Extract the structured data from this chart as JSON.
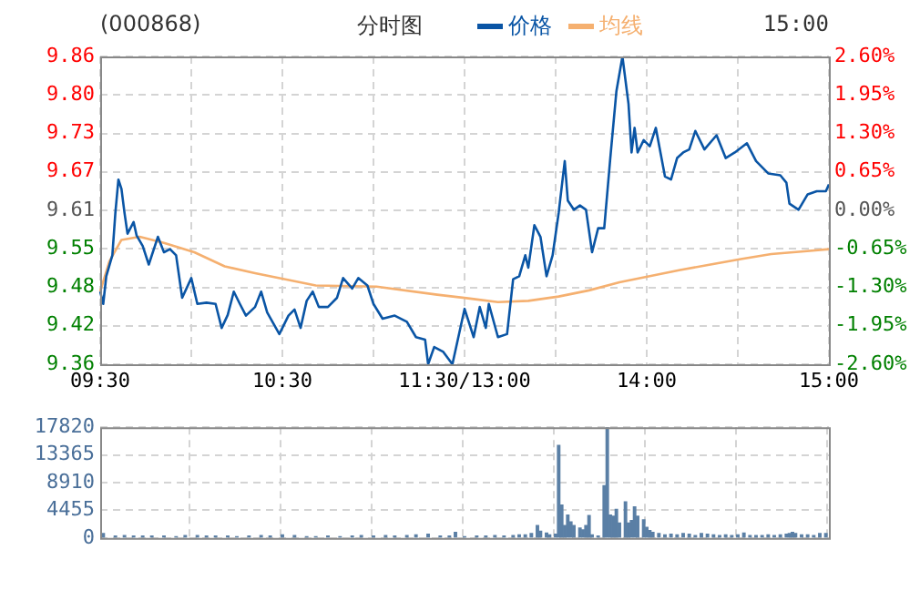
{
  "chart_data": [
    {
      "type": "line",
      "title": "(000868)",
      "subtitle": "分时图",
      "annotations": [
        "15:00"
      ],
      "legend": "top",
      "categories": [
        "09:30",
        null,
        null,
        null,
        null,
        null,
        null,
        null,
        null,
        null,
        null,
        null,
        null,
        null,
        null,
        null,
        null,
        null,
        null,
        null,
        null,
        null,
        null,
        null,
        null,
        null,
        null,
        null,
        null,
        null,
        null,
        null,
        null,
        null,
        null,
        null,
        null,
        null,
        null,
        null,
        null,
        null,
        null,
        null,
        null,
        null,
        null,
        null,
        null,
        null,
        null,
        null,
        null,
        null,
        null,
        null,
        null,
        null,
        null,
        null,
        "10:30",
        null,
        null,
        null,
        null,
        null,
        null,
        null,
        null,
        null,
        null,
        null,
        null,
        null,
        null,
        null,
        null,
        null,
        null,
        null,
        null,
        null,
        null,
        null,
        null,
        null,
        null,
        null,
        null,
        null,
        null,
        null,
        null,
        null,
        null,
        null,
        null,
        null,
        null,
        null,
        null,
        null,
        null,
        null,
        null,
        null,
        null,
        null,
        null,
        null,
        null,
        null,
        null,
        null,
        null,
        null,
        null,
        null,
        null,
        null,
        "11:30/13:00",
        null,
        null,
        null,
        null,
        null,
        null,
        null,
        null,
        null,
        null,
        null,
        null,
        null,
        null,
        null,
        null,
        null,
        null,
        null,
        null,
        null,
        null,
        null,
        null,
        null,
        null,
        null,
        null,
        null,
        null,
        null,
        null,
        null,
        null,
        null,
        null,
        null,
        null,
        null,
        null,
        null,
        null,
        null,
        null,
        null,
        null,
        null,
        null,
        null,
        null,
        null,
        null,
        null,
        null,
        null,
        null,
        null,
        null,
        null,
        "14:00",
        null,
        null,
        null,
        null,
        null,
        null,
        null,
        null,
        null,
        null,
        null,
        null,
        null,
        null,
        null,
        null,
        null,
        null,
        null,
        null,
        null,
        null,
        null,
        null,
        null,
        null,
        null,
        null,
        null,
        null,
        null,
        null,
        null,
        null,
        null,
        null,
        null,
        null,
        null,
        null,
        null,
        null,
        null,
        null,
        null,
        null,
        null,
        null,
        null,
        null,
        null,
        null,
        null,
        null,
        null,
        null,
        null,
        null,
        null,
        "15:00"
      ],
      "ylim": [
        9.36,
        9.86
      ],
      "yticks": [
        9.36,
        {
          "value": 9.4225,
          "label": "9.42"
        },
        {
          "value": 9.485,
          "label": "9.48"
        },
        {
          "value": 9.5475,
          "label": "9.55"
        },
        9.61,
        {
          "value": 9.6725,
          "label": "9.67"
        },
        {
          "value": 9.735,
          "label": "9.73"
        },
        {
          "value": 9.7975,
          "label": "9.80"
        },
        9.86
      ],
      "y2lim": [
        -2.6,
        2.6
      ],
      "y2ticks": [
        {
          "value": -2.6,
          "label": "-2.60%"
        },
        {
          "value": -1.95,
          "label": "-1.95%"
        },
        {
          "value": -1.3,
          "label": "-1.30%"
        },
        {
          "value": -0.65,
          "label": "-0.65%"
        },
        {
          "value": 0,
          "label": "0.00%"
        },
        {
          "value": 0.65,
          "label": "0.65%"
        },
        {
          "value": 1.3,
          "label": "1.30%"
        },
        {
          "value": 1.95,
          "label": "1.95%"
        },
        {
          "value": 2.6,
          "label": "2.60%"
        }
      ],
      "grid": true,
      "marker": "none",
      "series": [
        {
          "name": "价格",
          "color": "#0a55a5",
          "values": [
            9.478,
            9.458,
            9.503,
            null,
            9.537,
            9.606,
            9.66,
            9.645,
            9.606,
            9.572,
            null,
            9.591,
            9.569,
            null,
            9.552,
            null,
            9.522,
            null,
            null,
            9.567,
            null,
            9.542,
            null,
            9.547,
            null,
            9.537,
            null,
            9.468,
            null,
            null,
            9.5,
            null,
            9.458,
            null,
            null,
            9.46,
            null,
            null,
            9.458,
            null,
            9.419,
            null,
            9.44,
            null,
            9.478,
            null,
            9.458,
            null,
            9.439,
            null,
            null,
            9.453,
            null,
            9.478,
            null,
            9.444,
            null,
            null,
            null,
            9.409,
            null,
            null,
            9.439,
            null,
            9.449,
            null,
            9.419,
            null,
            9.463,
            null,
            9.478,
            null,
            9.453,
            null,
            null,
            9.453,
            null,
            null,
            9.468,
            null,
            9.5,
            null,
            null,
            9.483,
            null,
            9.5,
            null,
            null,
            9.488,
            null,
            9.458,
            null,
            null,
            9.434,
            null,
            null,
            null,
            9.439,
            null,
            null,
            null,
            9.429,
            null,
            null,
            9.404,
            null,
            null,
            9.4,
            9.36,
            null,
            9.388,
            null,
            null,
            9.38,
            null,
            null,
            9.36,
            null,
            null,
            null,
            9.45,
            null,
            null,
            9.404,
            null,
            9.453,
            null,
            9.419,
            9.458,
            null,
            null,
            9.404,
            null,
            null,
            9.409,
            null,
            9.498,
            null,
            9.503,
            null,
            9.537,
            9.517,
            null,
            9.586,
            null,
            9.567,
            null,
            9.503,
            null,
            9.537,
            null,
            9.606,
            null,
            9.69,
            9.626,
            null,
            9.611,
            null,
            9.618,
            null,
            9.611,
            null,
            9.542,
            null,
            9.581,
            null,
            9.581,
            null,
            9.695,
            null,
            9.803,
            null,
            9.86,
            null,
            9.783,
            9.704,
            9.744,
            9.704,
            null,
            9.724,
            null,
            9.714,
            null,
            9.744,
            null,
            null,
            9.665,
            null,
            9.66,
            null,
            9.695,
            null,
            9.704,
            null,
            9.709,
            null,
            9.739,
            null,
            null,
            9.709,
            null,
            null,
            null,
            9.732,
            null,
            null,
            9.695,
            null,
            null,
            9.704,
            null,
            null,
            null,
            9.719,
            null,
            null,
            9.69,
            null,
            null,
            null,
            9.67,
            null,
            null,
            null,
            9.667,
            null,
            9.655,
            9.621,
            null,
            null,
            9.611,
            null,
            null,
            9.636,
            null,
            null,
            9.641,
            null,
            null,
            9.641,
            9.652
          ]
        },
        {
          "name": "均线",
          "color": "#f5b070",
          "values": [
            9.478,
            null,
            null,
            9.527,
            null,
            null,
            null,
            9.562,
            null,
            null,
            null,
            null,
            null,
            9.567,
            null,
            null,
            null,
            null,
            null,
            null,
            null,
            9.557,
            null,
            null,
            null,
            null,
            null,
            null,
            null,
            null,
            null,
            9.542,
            null,
            null,
            null,
            null,
            null,
            null,
            null,
            null,
            null,
            9.519,
            null,
            null,
            null,
            null,
            null,
            null,
            null,
            null,
            null,
            9.508,
            null,
            null,
            null,
            null,
            null,
            null,
            null,
            null,
            null,
            9.498,
            null,
            null,
            null,
            null,
            null,
            null,
            null,
            null,
            null,
            9.488,
            null,
            null,
            null,
            null,
            null,
            null,
            null,
            null,
            null,
            null,
            null,
            null,
            null,
            null,
            null,
            null,
            null,
            null,
            null,
            9.486,
            null,
            null,
            null,
            null,
            null,
            null,
            null,
            null,
            null,
            null,
            null,
            null,
            null,
            null,
            null,
            null,
            null,
            null,
            null,
            9.473,
            null,
            null,
            null,
            null,
            null,
            null,
            null,
            null,
            null,
            null,
            null,
            9.466,
            null,
            null,
            null,
            null,
            null,
            null,
            null,
            9.461,
            null,
            null,
            null,
            null,
            null,
            null,
            null,
            null,
            null,
            9.463,
            null,
            null,
            null,
            null,
            null,
            null,
            null,
            null,
            null,
            9.47,
            null,
            null,
            null,
            null,
            null,
            null,
            null,
            null,
            null,
            9.48,
            null,
            null,
            null,
            null,
            null,
            null,
            null,
            null,
            null,
            9.493,
            null,
            null,
            null,
            null,
            null,
            null,
            null,
            null,
            null,
            9.503,
            null,
            null,
            null,
            null,
            null,
            null,
            null,
            null,
            null,
            9.513,
            null,
            null,
            null,
            null,
            null,
            null,
            null,
            null,
            null,
            9.522,
            null,
            null,
            null,
            null,
            null,
            null,
            null,
            null,
            null,
            9.531,
            null,
            null,
            null,
            null,
            null,
            null,
            null,
            null,
            null,
            9.539,
            null,
            null,
            null,
            null,
            null,
            null,
            null,
            null,
            null,
            9.543,
            null,
            null,
            null,
            null,
            null,
            null,
            null,
            null,
            9.547
          ]
        }
      ]
    },
    {
      "type": "bar",
      "color": "#5a7fa5",
      "grid": true,
      "tick_labels": "y",
      "categories": [
        null,
        null,
        null,
        null,
        null,
        null,
        null,
        null,
        null,
        null,
        null,
        null,
        null,
        null,
        null,
        null,
        null,
        null,
        null,
        null,
        null,
        null,
        null,
        null,
        null,
        null,
        null,
        null,
        null,
        null,
        null,
        null,
        null,
        null,
        null,
        null,
        null,
        null,
        null,
        null,
        null,
        null,
        null,
        null,
        null,
        null,
        null,
        null,
        null,
        null,
        null,
        null,
        null,
        null,
        null,
        null,
        null,
        null,
        null,
        null,
        null,
        null,
        null,
        null,
        null,
        null,
        null,
        null,
        null,
        null,
        null,
        null,
        null,
        null,
        null,
        null,
        null,
        null,
        null,
        null,
        null,
        null,
        null,
        null,
        null,
        null,
        null,
        null,
        null,
        null,
        null,
        null,
        null,
        null,
        null,
        null,
        null,
        null,
        null,
        null,
        null,
        null,
        null,
        null,
        null,
        null,
        null,
        null,
        null,
        null,
        null,
        null,
        null,
        null,
        null,
        null,
        null,
        null,
        null,
        null,
        null,
        null,
        null,
        null,
        null,
        null,
        null,
        null,
        null,
        null,
        null,
        null,
        null,
        null,
        null,
        null,
        null,
        null,
        null,
        null,
        null,
        null,
        null,
        null,
        null,
        null,
        null,
        null,
        null,
        null,
        null,
        null,
        null,
        null,
        null,
        null,
        null,
        null,
        null,
        null,
        null,
        null,
        null,
        null,
        null,
        null,
        null,
        null,
        null,
        null,
        null,
        null,
        null,
        null,
        null,
        null,
        null,
        null,
        null,
        null,
        null,
        null,
        null,
        null,
        null,
        null,
        null,
        null,
        null,
        null,
        null,
        null,
        null,
        null,
        null,
        null,
        null,
        null,
        null,
        null,
        null,
        null,
        null,
        null,
        null,
        null,
        null,
        null,
        null,
        null,
        null,
        null,
        null,
        null,
        null,
        null,
        null,
        null,
        null,
        null,
        null,
        null,
        null,
        null,
        null,
        null,
        null,
        null,
        null,
        null,
        null,
        null,
        null,
        null,
        null,
        null,
        null,
        null,
        null,
        null,
        null
      ],
      "ylim": [
        0,
        17820
      ],
      "yticks": [
        0,
        4455,
        8910,
        13365,
        17820
      ],
      "values": [
        null,
        700,
        null,
        null,
        null,
        300,
        null,
        null,
        400,
        null,
        null,
        300,
        null,
        null,
        300,
        null,
        null,
        300,
        null,
        null,
        null,
        300,
        null,
        null,
        null,
        200,
        null,
        null,
        400,
        null,
        null,
        null,
        400,
        null,
        null,
        300,
        null,
        null,
        300,
        null,
        null,
        null,
        300,
        null,
        null,
        200,
        null,
        null,
        null,
        300,
        null,
        null,
        null,
        400,
        null,
        null,
        300,
        null,
        null,
        null,
        500,
        null,
        null,
        null,
        400,
        null,
        null,
        null,
        200,
        null,
        null,
        200,
        null,
        null,
        null,
        300,
        null,
        null,
        null,
        200,
        null,
        null,
        null,
        300,
        null,
        null,
        400,
        null,
        null,
        null,
        300,
        null,
        null,
        null,
        400,
        null,
        null,
        300,
        null,
        null,
        null,
        400,
        null,
        null,
        500,
        null,
        null,
        null,
        600,
        null,
        null,
        null,
        300,
        null,
        null,
        300,
        null,
        900,
        null,
        null,
        200,
        null,
        null,
        null,
        300,
        null,
        null,
        300,
        null,
        null,
        400,
        null,
        null,
        300,
        null,
        null,
        400,
        null,
        500,
        null,
        500,
        null,
        700,
        null,
        2000,
        1100,
        null,
        800,
        500,
        null,
        600,
        14900,
        5300,
        2000,
        3700,
        2600,
        2000,
        null,
        1600,
        1300,
        2000,
        3600,
        500,
        null,
        300,
        null,
        8400,
        17800,
        3700,
        3500,
        4600,
        2400,
        null,
        5800,
        2400,
        2800,
        5000,
        3500,
        null,
        2900,
        1700,
        1200,
        900,
        null,
        700,
        null,
        500,
        null,
        600,
        null,
        500,
        null,
        700,
        null,
        600,
        null,
        400,
        null,
        700,
        null,
        600,
        null,
        500,
        null,
        400,
        null,
        500,
        null,
        400,
        null,
        500,
        null,
        800,
        null,
        400,
        null,
        400,
        null,
        400,
        null,
        500,
        null,
        400,
        null,
        500,
        null,
        600,
        700,
        900,
        700,
        null,
        500,
        null,
        500,
        null,
        400,
        null,
        700,
        null,
        700,
        null
      ]
    }
  ]
}
